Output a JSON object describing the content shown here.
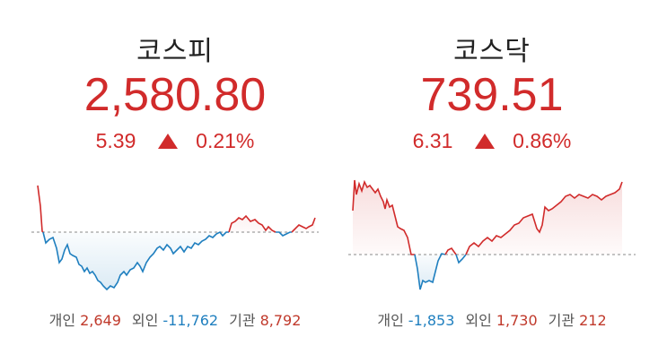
{
  "colors": {
    "up": "#d12b2b",
    "down": "#1f7fbf",
    "dashed": "#8a8a8a"
  },
  "kospi": {
    "name": "코스피",
    "value": "2,580.80",
    "change": "5.39",
    "direction": "up-triangle-icon",
    "change_pct": "0.21%",
    "investors": {
      "individual_label": "개인",
      "individual_value": "2,649",
      "foreign_label": "외인",
      "foreign_value": "-11,762",
      "institution_label": "기관",
      "institution_value": "8,792"
    },
    "series_level": 0.32
  },
  "kosdaq": {
    "name": "코스닥",
    "value": "739.51",
    "change": "6.31",
    "direction": "up-triangle-icon",
    "change_pct": "0.86%",
    "investors": {
      "individual_label": "개인",
      "individual_value": "-1,853",
      "foreign_label": "외인",
      "foreign_value": "1,730",
      "institution_label": "기관",
      "institution_value": "212"
    },
    "series_level": 0.46
  }
}
